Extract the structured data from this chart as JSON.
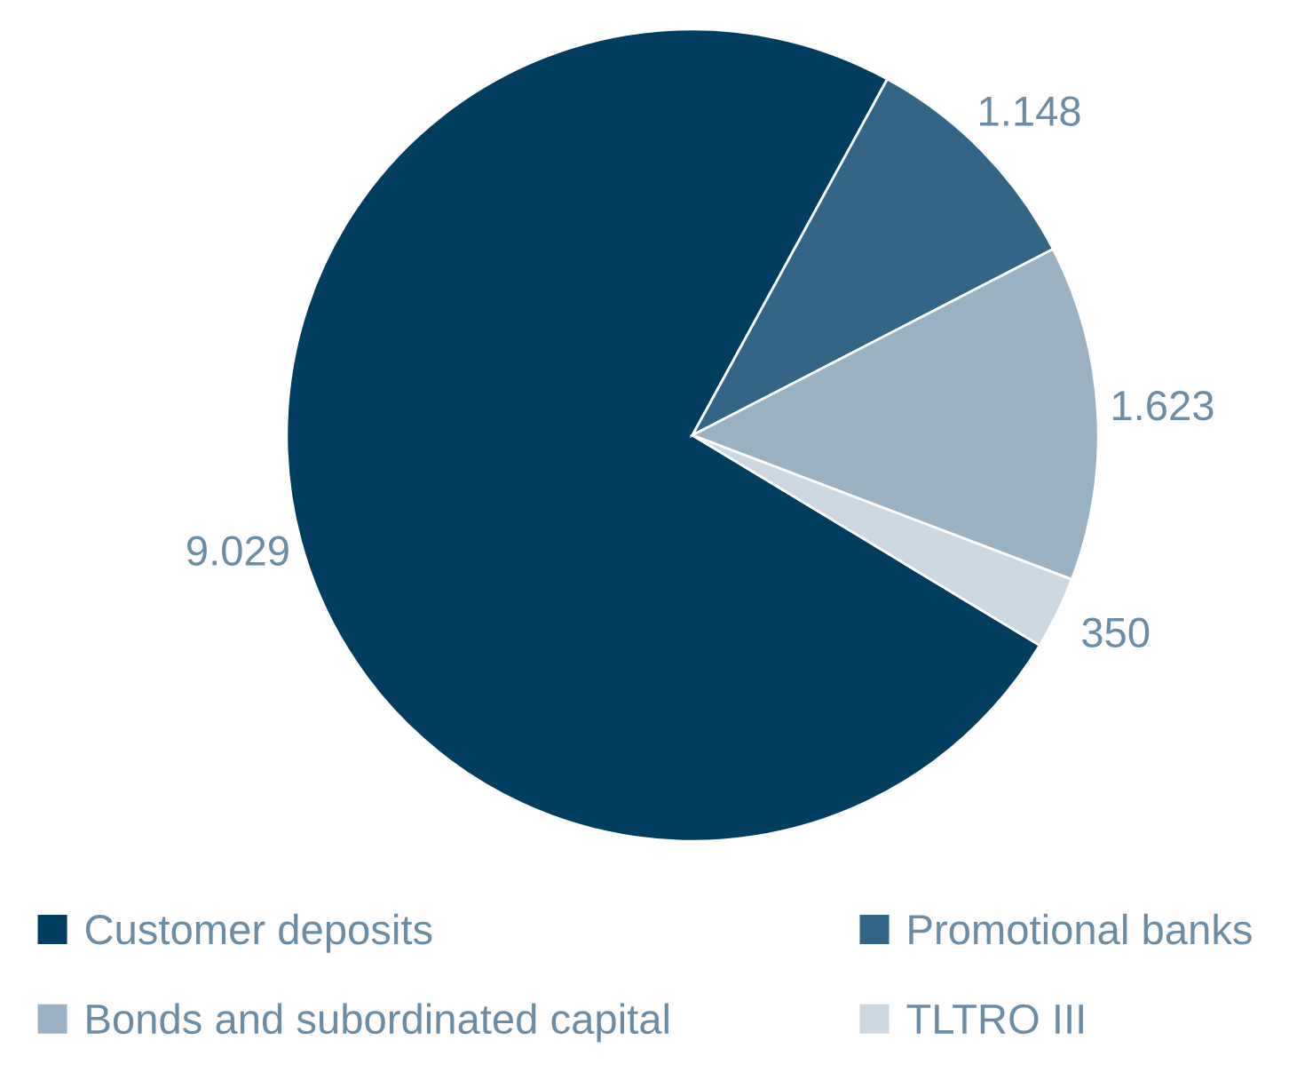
{
  "chart_data": {
    "type": "pie",
    "categories": [
      "Customer deposits",
      "Promotional banks",
      "Bonds and subordinated capital",
      "TLTRO III"
    ],
    "values": [
      9029,
      1148,
      1623,
      350
    ],
    "value_labels": [
      "9.029",
      "1.148",
      "1.623",
      "350"
    ],
    "colors": [
      "#003d5f",
      "#336686",
      "#99b1c3",
      "#ccd8e1"
    ],
    "legend": "bottom"
  }
}
